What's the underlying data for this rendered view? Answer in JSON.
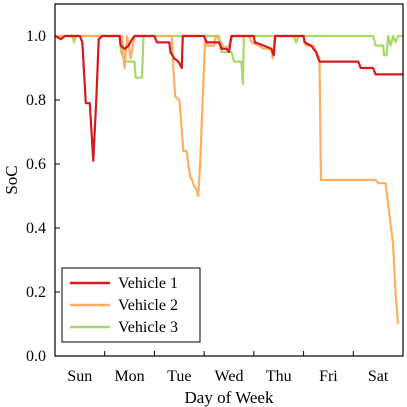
{
  "chart_data": {
    "type": "line",
    "title": "",
    "xlabel": "Day of Week",
    "ylabel": "SoC",
    "xlim": [
      0,
      7
    ],
    "ylim": [
      0,
      1.1
    ],
    "grid": false,
    "legend_position": "bottom-left",
    "categories": [
      "Sun",
      "Mon",
      "Tue",
      "Wed",
      "Thu",
      "Fri",
      "Sat"
    ],
    "yticks": [
      "0.0",
      "0.2",
      "0.4",
      "0.6",
      "0.8",
      "1.0"
    ],
    "ytick_values": [
      0,
      0.2,
      0.4,
      0.6,
      0.8,
      1.0
    ],
    "series": [
      {
        "name": "Vehicle 1",
        "color": "#d7191c",
        "points": [
          [
            0,
            1.0
          ],
          [
            0.12,
            0.99
          ],
          [
            0.2,
            1.0
          ],
          [
            0.5,
            1.0
          ],
          [
            0.55,
            0.98
          ],
          [
            0.62,
            0.79
          ],
          [
            0.7,
            0.79
          ],
          [
            0.77,
            0.61
          ],
          [
            0.83,
            0.8
          ],
          [
            0.88,
            0.99
          ],
          [
            0.95,
            1.0
          ],
          [
            1.3,
            1.0
          ],
          [
            1.32,
            0.97
          ],
          [
            1.4,
            0.96
          ],
          [
            1.48,
            0.97
          ],
          [
            1.55,
            0.99
          ],
          [
            1.6,
            1.0
          ],
          [
            2.0,
            1.0
          ],
          [
            2.05,
            0.98
          ],
          [
            2.3,
            0.98
          ],
          [
            2.32,
            0.95
          ],
          [
            2.4,
            0.93
          ],
          [
            2.48,
            0.92
          ],
          [
            2.55,
            0.9
          ],
          [
            2.57,
            1.0
          ],
          [
            3.0,
            1.0
          ],
          [
            3.05,
            0.98
          ],
          [
            3.3,
            0.98
          ],
          [
            3.35,
            0.96
          ],
          [
            3.45,
            0.96
          ],
          [
            3.5,
            0.95
          ],
          [
            3.55,
            1.0
          ],
          [
            4.0,
            1.0
          ],
          [
            4.02,
            0.98
          ],
          [
            4.2,
            0.97
          ],
          [
            4.35,
            0.96
          ],
          [
            4.4,
            0.94
          ],
          [
            4.43,
            1.0
          ],
          [
            5.0,
            1.0
          ],
          [
            5.02,
            0.98
          ],
          [
            5.15,
            0.97
          ],
          [
            5.25,
            0.95
          ],
          [
            5.32,
            0.92
          ],
          [
            6.1,
            0.92
          ],
          [
            6.15,
            0.9
          ],
          [
            6.4,
            0.9
          ],
          [
            6.45,
            0.88
          ],
          [
            7.0,
            0.88
          ]
        ]
      },
      {
        "name": "Vehicle 2",
        "color": "#fdae61",
        "points": [
          [
            0,
            1.0
          ],
          [
            1.35,
            1.0
          ],
          [
            1.37,
            0.95
          ],
          [
            1.4,
            0.9
          ],
          [
            1.45,
            1.0
          ],
          [
            1.48,
            0.97
          ],
          [
            1.52,
            0.93
          ],
          [
            1.6,
            1.0
          ],
          [
            2.35,
            1.0
          ],
          [
            2.38,
            0.9
          ],
          [
            2.42,
            0.81
          ],
          [
            2.5,
            0.8
          ],
          [
            2.53,
            0.75
          ],
          [
            2.58,
            0.64
          ],
          [
            2.65,
            0.64
          ],
          [
            2.68,
            0.6
          ],
          [
            2.72,
            0.56
          ],
          [
            2.76,
            0.55
          ],
          [
            2.8,
            0.53
          ],
          [
            2.85,
            0.52
          ],
          [
            2.88,
            0.5
          ],
          [
            2.92,
            0.6
          ],
          [
            2.97,
            0.8
          ],
          [
            3.02,
            0.99
          ],
          [
            3.05,
            0.97
          ],
          [
            3.2,
            0.97
          ],
          [
            3.22,
            1.0
          ],
          [
            3.3,
            0.99
          ],
          [
            3.4,
            0.96
          ],
          [
            3.5,
            0.97
          ],
          [
            3.55,
            1.0
          ],
          [
            3.9,
            1.0
          ],
          [
            3.95,
            0.98
          ],
          [
            4.1,
            0.97
          ],
          [
            4.2,
            0.96
          ],
          [
            4.35,
            0.96
          ],
          [
            4.38,
            0.93
          ],
          [
            4.42,
            1.0
          ],
          [
            5.0,
            1.0
          ],
          [
            5.05,
            0.97
          ],
          [
            5.2,
            0.97
          ],
          [
            5.25,
            0.95
          ],
          [
            5.32,
            0.93
          ],
          [
            5.35,
            0.55
          ],
          [
            6.45,
            0.55
          ],
          [
            6.5,
            0.54
          ],
          [
            6.65,
            0.54
          ],
          [
            6.72,
            0.45
          ],
          [
            6.8,
            0.35
          ],
          [
            6.85,
            0.2
          ],
          [
            6.9,
            0.1
          ]
        ]
      },
      {
        "name": "Vehicle 3",
        "color": "#a6d96a",
        "points": [
          [
            0,
            1.0
          ],
          [
            0.35,
            1.0
          ],
          [
            0.38,
            0.98
          ],
          [
            0.42,
            1.0
          ],
          [
            1.3,
            1.0
          ],
          [
            1.33,
            0.95
          ],
          [
            1.4,
            0.92
          ],
          [
            1.6,
            0.92
          ],
          [
            1.62,
            0.87
          ],
          [
            1.75,
            0.87
          ],
          [
            1.78,
            1.0
          ],
          [
            3.3,
            1.0
          ],
          [
            3.35,
            0.95
          ],
          [
            3.55,
            0.95
          ],
          [
            3.6,
            0.92
          ],
          [
            3.75,
            0.92
          ],
          [
            3.78,
            0.85
          ],
          [
            3.8,
            1.0
          ],
          [
            4.8,
            1.0
          ],
          [
            4.85,
            0.98
          ],
          [
            4.9,
            1.0
          ],
          [
            6.4,
            1.0
          ],
          [
            6.45,
            0.97
          ],
          [
            6.6,
            0.97
          ],
          [
            6.62,
            0.94
          ],
          [
            6.67,
            0.94
          ],
          [
            6.7,
            1.0
          ],
          [
            6.75,
            0.97
          ],
          [
            6.8,
            1.0
          ],
          [
            6.85,
            0.98
          ],
          [
            6.9,
            1.0
          ],
          [
            7.0,
            1.0
          ]
        ]
      }
    ]
  }
}
